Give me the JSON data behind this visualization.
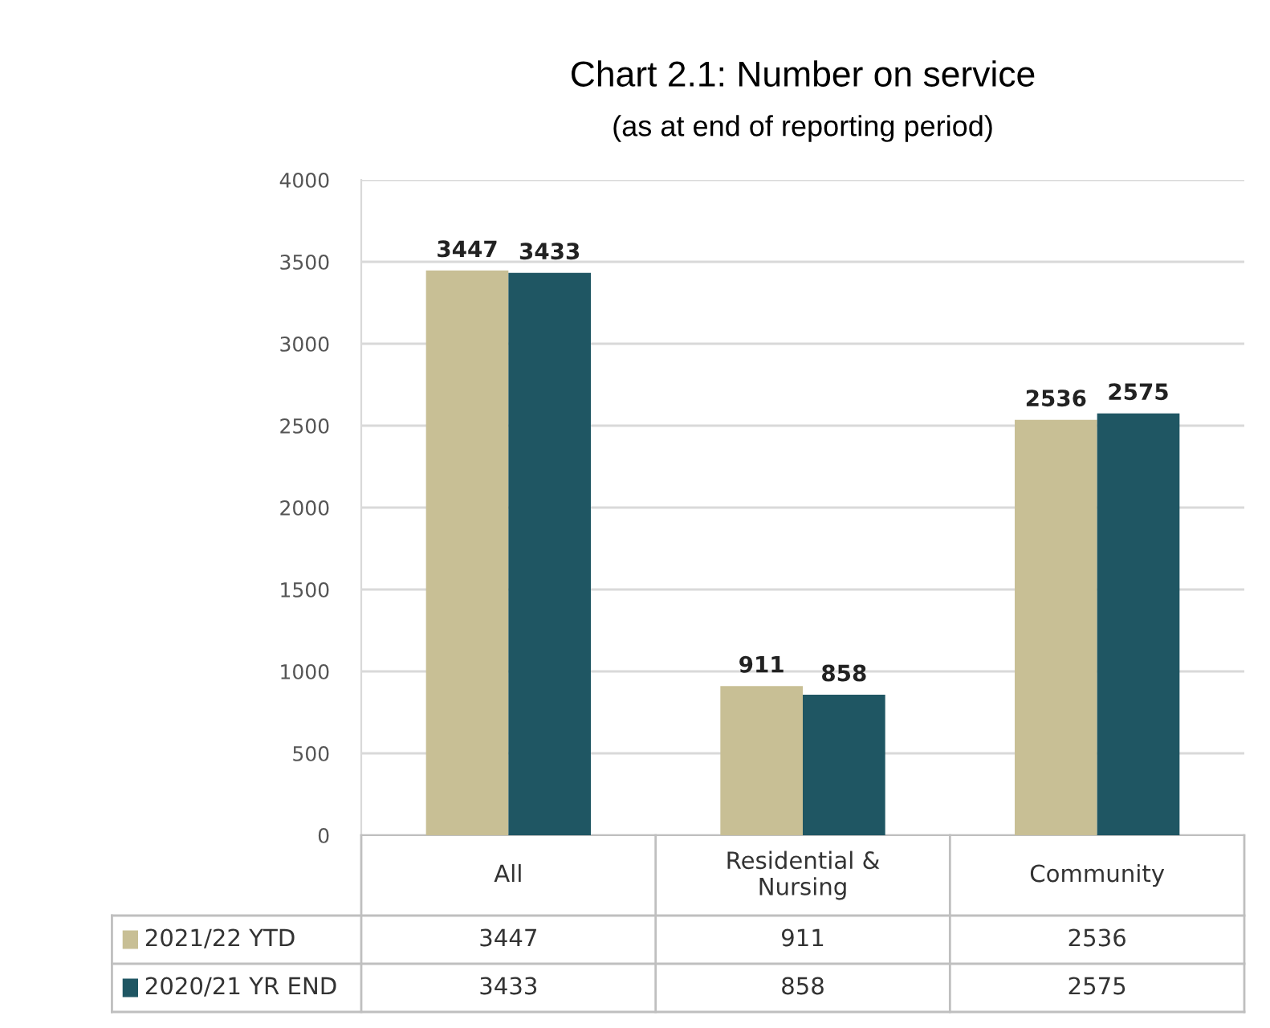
{
  "chart_data": {
    "type": "bar",
    "title": "Chart 2.1: Number on service",
    "subtitle": "(as at end of reporting period)",
    "categories": [
      "All",
      "Residential & Nursing",
      "Community"
    ],
    "series": [
      {
        "name": "2021/22 YTD",
        "color": "#c8bf95",
        "values": [
          3447,
          911,
          2536
        ],
        "value_labels": [
          "3447",
          "911",
          "2536"
        ]
      },
      {
        "name": "2020/21 YR END",
        "color": "#1f5663",
        "values": [
          3433,
          858,
          2575
        ],
        "value_labels": [
          "3433",
          "858",
          "2575"
        ]
      }
    ],
    "ylim": [
      0,
      4000
    ],
    "yticks": [
      0,
      500,
      1000,
      1500,
      2000,
      2500,
      3000,
      3500,
      4000
    ],
    "annotations": [
      "3447",
      "911",
      "2536",
      "3433",
      "858",
      "2575"
    ],
    "grid": "y",
    "legend": "bottom"
  }
}
